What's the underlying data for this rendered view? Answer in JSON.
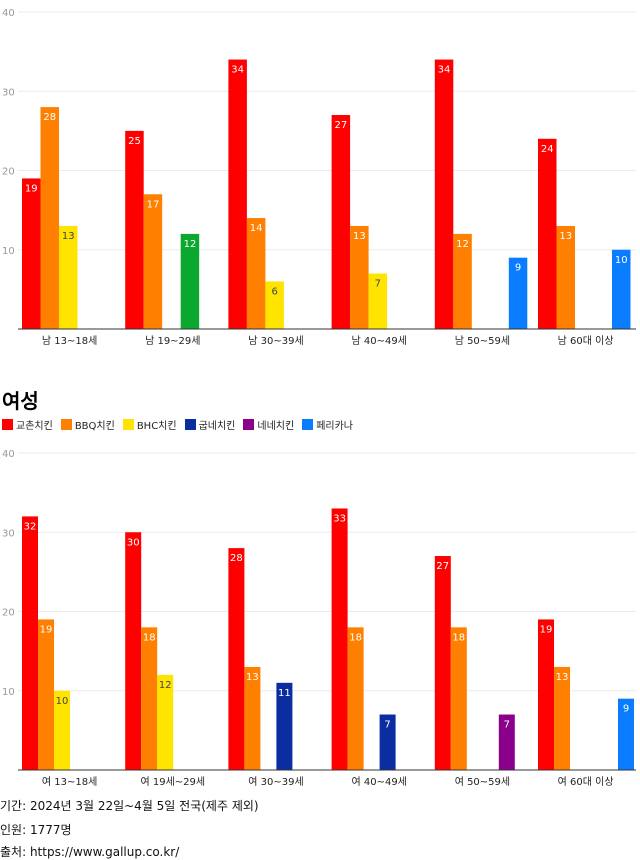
{
  "colors": {
    "교촌치킨": "#ff0000",
    "BBQ치킨": "#ff7f00",
    "BHC치킨": "#ffe400",
    "green": "#0aa82e",
    "굽네치킨": "#0a2d9f",
    "네네치킨": "#8b008b",
    "페리카나": "#0a7cff"
  },
  "section_title": "여성",
  "legend": [
    {
      "label": "교촌치킨",
      "color": "#ff0000"
    },
    {
      "label": "BBQ치킨",
      "color": "#ff7f00"
    },
    {
      "label": "BHC치킨",
      "color": "#ffe400"
    },
    {
      "label": "굽네치킨",
      "color": "#0a2d9f"
    },
    {
      "label": "네네치킨",
      "color": "#8b008b"
    },
    {
      "label": "페리카나",
      "color": "#0a7cff"
    }
  ],
  "chart_data": [
    {
      "type": "bar",
      "title": "",
      "ylim": [
        0,
        40
      ],
      "yticks": [
        "0",
        "10",
        "20",
        "30",
        "40"
      ],
      "grid": true,
      "categories": [
        "남 13~18세",
        "남 19~29세",
        "남 30~39세",
        "남 40~49세",
        "남 50~59세",
        "남 60대 이상"
      ],
      "series": [
        {
          "name": "교촌치킨",
          "color": "#ff0000",
          "values": [
            19,
            25,
            34,
            27,
            34,
            24
          ]
        },
        {
          "name": "BBQ치킨",
          "color": "#ff7f00",
          "values": [
            28,
            17,
            14,
            13,
            12,
            13
          ]
        },
        {
          "name": "BHC치킨",
          "color": "#ffe400",
          "values": [
            13,
            null,
            6,
            7,
            null,
            null
          ]
        },
        {
          "name": null,
          "color": "#0aa82e",
          "values": [
            null,
            12,
            null,
            null,
            null,
            null
          ]
        },
        {
          "name": "페리카나",
          "color": "#0a7cff",
          "values": [
            null,
            null,
            null,
            null,
            9,
            10
          ]
        }
      ]
    },
    {
      "type": "bar",
      "title": "여성",
      "ylim": [
        0,
        40
      ],
      "yticks": [
        "0",
        "10",
        "20",
        "30",
        "40"
      ],
      "grid": true,
      "legend": "top-left",
      "categories": [
        "여 13~18세",
        "여 19세~29세",
        "여 30~39세",
        "여 40~49세",
        "여 50~59세",
        "여 60대 이상"
      ],
      "series": [
        {
          "name": "교촌치킨",
          "color": "#ff0000",
          "values": [
            32,
            30,
            28,
            33,
            27,
            19
          ]
        },
        {
          "name": "BBQ치킨",
          "color": "#ff7f00",
          "values": [
            19,
            18,
            13,
            18,
            18,
            13
          ]
        },
        {
          "name": "BHC치킨",
          "color": "#ffe400",
          "values": [
            10,
            12,
            null,
            null,
            null,
            null
          ]
        },
        {
          "name": "굽네치킨",
          "color": "#0a2d9f",
          "values": [
            null,
            null,
            11,
            7,
            null,
            null
          ]
        },
        {
          "name": "네네치킨",
          "color": "#8b008b",
          "values": [
            null,
            null,
            null,
            null,
            7,
            null
          ]
        },
        {
          "name": "페리카나",
          "color": "#0a7cff",
          "values": [
            null,
            null,
            null,
            null,
            null,
            9
          ]
        }
      ]
    }
  ],
  "footer": {
    "period": "기간: 2024년 3월 22일~4월 5일 전국(제주 제외)",
    "sample": "인원: 1777명",
    "source": "출처: https://www.gallup.co.kr/"
  }
}
